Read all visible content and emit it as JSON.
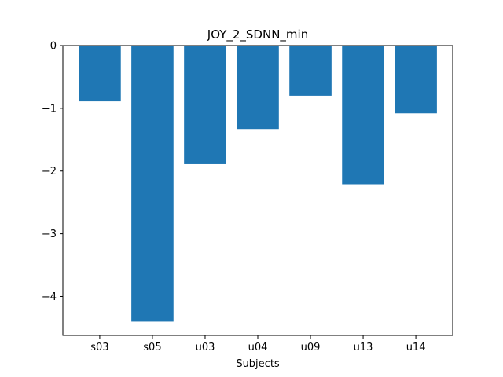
{
  "chart_data": {
    "type": "bar",
    "title": "JOY_2_SDNN_min",
    "xlabel": "Subjects",
    "ylabel": "",
    "categories": [
      "s03",
      "s05",
      "u03",
      "u04",
      "u09",
      "u13",
      "u14"
    ],
    "values": [
      -0.89,
      -4.4,
      -1.89,
      -1.33,
      -0.8,
      -2.21,
      -1.08
    ],
    "ylim": [
      -4.62,
      0
    ],
    "yticks": [
      0,
      -1,
      -2,
      -3,
      -4
    ],
    "ytick_labels": [
      "0",
      "−1",
      "−2",
      "−3",
      "−4"
    ],
    "bar_color": "#1f77b4",
    "grid": false,
    "legend": "none"
  }
}
